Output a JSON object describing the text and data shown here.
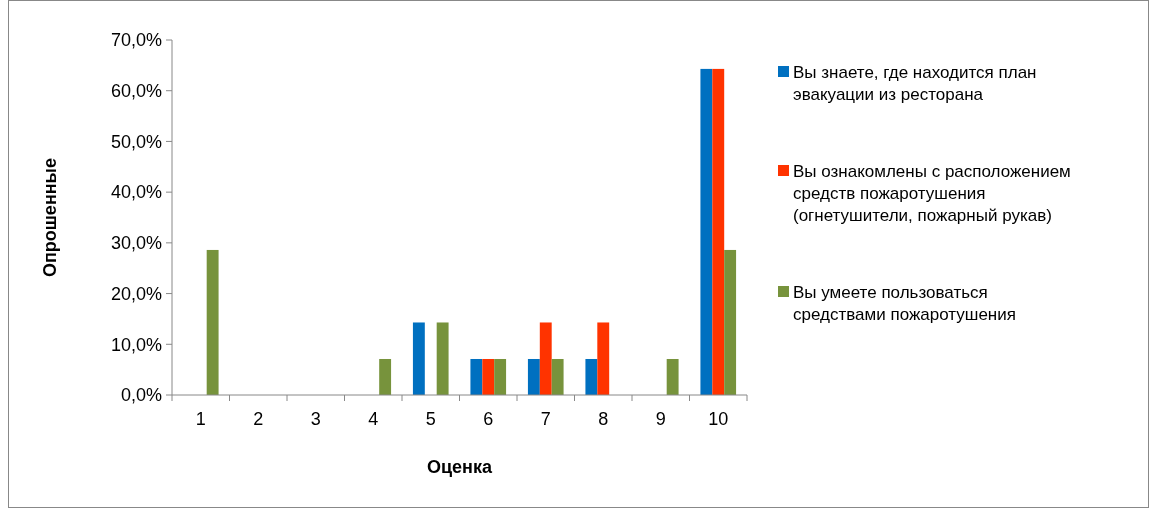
{
  "chart_data": {
    "type": "bar",
    "xlabel": "Оценка",
    "ylabel": "Опрошенные",
    "categories": [
      "1",
      "2",
      "3",
      "4",
      "5",
      "6",
      "7",
      "8",
      "9",
      "10"
    ],
    "series": [
      {
        "name": "Вы знаете, где находится план эвакуации из ресторана",
        "color": "#0070c0",
        "values": [
          0,
          0,
          0,
          0,
          14.3,
          7.1,
          7.1,
          7.1,
          0,
          64.3
        ]
      },
      {
        "name": "Вы ознакомлены с расположением средств пожаротушения (огнетушители, пожарный рукав)",
        "color": "#ff3300",
        "values": [
          0,
          0,
          0,
          0,
          0,
          7.1,
          14.3,
          14.3,
          0,
          64.3
        ]
      },
      {
        "name": "Вы умеете пользоваться средствами пожаротушения",
        "color": "#77933c",
        "values": [
          28.6,
          0,
          0,
          7.1,
          14.3,
          7.1,
          7.1,
          0,
          7.1,
          28.6
        ]
      }
    ],
    "ylim": [
      0,
      70
    ],
    "yticks": [
      {
        "value": 0,
        "label": "0,0%"
      },
      {
        "value": 10,
        "label": "10,0%"
      },
      {
        "value": 20,
        "label": "20,0%"
      },
      {
        "value": 30,
        "label": "30,0%"
      },
      {
        "value": 40,
        "label": "40,0%"
      },
      {
        "value": 50,
        "label": "50,0%"
      },
      {
        "value": 60,
        "label": "60,0%"
      },
      {
        "value": 70,
        "label": "70,0%"
      }
    ],
    "grid": false,
    "legend": "right"
  }
}
